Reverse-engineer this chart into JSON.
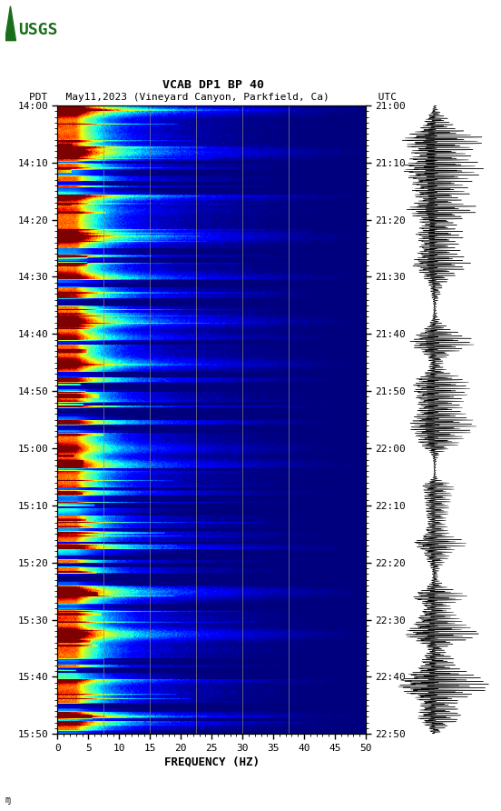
{
  "title_line1": "VCAB DP1 BP 40",
  "title_line2": "PDT   May11,2023 (Vineyard Canyon, Parkfield, Ca)        UTC",
  "xlabel": "FREQUENCY (HZ)",
  "freq_min": 0,
  "freq_max": 50,
  "time_labels_left": [
    "14:00",
    "14:10",
    "14:20",
    "14:30",
    "14:40",
    "14:50",
    "15:00",
    "15:10",
    "15:20",
    "15:30",
    "15:40",
    "15:50"
  ],
  "time_labels_right": [
    "21:00",
    "21:10",
    "21:20",
    "21:30",
    "21:40",
    "21:50",
    "22:00",
    "22:10",
    "22:20",
    "22:30",
    "22:40",
    "22:50"
  ],
  "freq_ticks": [
    0,
    5,
    10,
    15,
    20,
    25,
    30,
    35,
    40,
    45,
    50
  ],
  "background_color": "#ffffff",
  "spectrogram_colormap": "jet",
  "n_time_rows": 600,
  "n_freq_cols": 500,
  "seed": 12345,
  "usgs_color": "#1a6e1a",
  "vline_freqs": [
    7.5,
    15.0,
    22.5,
    30.0,
    37.5
  ],
  "vline_color": "#888888"
}
